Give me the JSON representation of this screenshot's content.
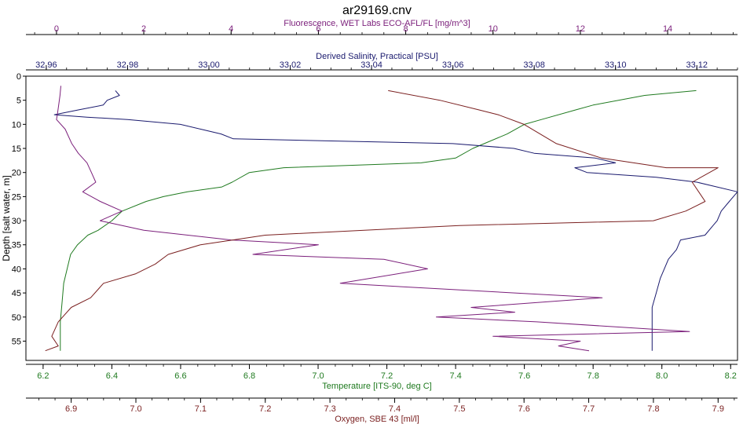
{
  "chart_data": {
    "type": "line",
    "title": "ar29169.cnv",
    "y_axis": {
      "label": "Depth [salt water, m]",
      "range": [
        0,
        59
      ],
      "ticks": [
        0,
        5,
        10,
        15,
        20,
        25,
        30,
        35,
        40,
        45,
        50,
        55
      ],
      "inverted": true
    },
    "x_axes": [
      {
        "id": "fluorescence",
        "label": "Fluorescence, WET Labs ECO-AFL/FL [mg/m^3]",
        "position": "top-1",
        "range": [
          -0.7,
          15.6
        ],
        "ticks": [
          0,
          2,
          4,
          6,
          8,
          10,
          12,
          14
        ],
        "tick_labels": [
          "0",
          "2",
          "4",
          "6",
          "8",
          "10",
          "12",
          "14"
        ],
        "color": "#7b1f7b"
      },
      {
        "id": "salinity",
        "label": "Derived Salinity, Practical [PSU]",
        "position": "top-2",
        "range": [
          32.955,
          33.13
        ],
        "ticks": [
          32.96,
          32.98,
          33.0,
          33.02,
          33.04,
          33.06,
          33.08,
          33.1,
          33.12
        ],
        "tick_labels": [
          "32,96",
          "32,98",
          "33,00",
          "33,02",
          "33,04",
          "33,06",
          "33,08",
          "33,10",
          "33,12"
        ],
        "color": "#1a1a6e"
      },
      {
        "id": "temperature",
        "label": "Temperature [ITS-90, deg C]",
        "position": "bottom-1",
        "range": [
          6.15,
          8.22
        ],
        "ticks": [
          6.2,
          6.4,
          6.6,
          6.8,
          7.0,
          7.2,
          7.4,
          7.6,
          7.8,
          8.0,
          8.2
        ],
        "tick_labels": [
          "6.2",
          "6.4",
          "6.6",
          "6.8",
          "7.0",
          "7.2",
          "7.4",
          "7.6",
          "7.8",
          "8.0",
          "8.2"
        ],
        "color": "#1f7a1f"
      },
      {
        "id": "oxygen",
        "label": "Oxygen, SBE 43 [ml/l]",
        "position": "bottom-2",
        "range": [
          6.83,
          7.93
        ],
        "ticks": [
          6.9,
          7.0,
          7.1,
          7.2,
          7.3,
          7.4,
          7.5,
          7.6,
          7.7,
          7.8,
          7.9
        ],
        "tick_labels": [
          "6.9",
          "7.0",
          "7.1",
          "7.2",
          "7.3",
          "7.4",
          "7.5",
          "7.6",
          "7.7",
          "7.8",
          "7.9"
        ],
        "color": "#7a1f1f"
      }
    ],
    "series": [
      {
        "axis": "temperature",
        "color": "#1f7a1f",
        "points": [
          [
            8.1,
            3
          ],
          [
            7.95,
            4
          ],
          [
            7.8,
            6
          ],
          [
            7.75,
            7
          ],
          [
            7.65,
            9
          ],
          [
            7.6,
            10
          ],
          [
            7.55,
            12
          ],
          [
            7.45,
            15
          ],
          [
            7.4,
            17
          ],
          [
            7.3,
            18
          ],
          [
            7.1,
            18.5
          ],
          [
            6.9,
            19
          ],
          [
            6.8,
            20
          ],
          [
            6.75,
            22
          ],
          [
            6.72,
            23
          ],
          [
            6.62,
            24
          ],
          [
            6.55,
            25
          ],
          [
            6.5,
            26
          ],
          [
            6.43,
            28
          ],
          [
            6.4,
            30
          ],
          [
            6.36,
            32
          ],
          [
            6.33,
            33
          ],
          [
            6.3,
            35
          ],
          [
            6.28,
            37
          ],
          [
            6.27,
            40
          ],
          [
            6.26,
            43
          ],
          [
            6.255,
            47
          ],
          [
            6.25,
            51
          ],
          [
            6.25,
            57
          ]
        ]
      },
      {
        "axis": "salinity",
        "color": "#1a1a6e",
        "points": [
          [
            32.977,
            3
          ],
          [
            32.978,
            4
          ],
          [
            32.975,
            5
          ],
          [
            32.974,
            6
          ],
          [
            32.968,
            7
          ],
          [
            32.962,
            8
          ],
          [
            32.97,
            8.5
          ],
          [
            32.98,
            9
          ],
          [
            32.993,
            10
          ],
          [
            32.998,
            11
          ],
          [
            33.003,
            12
          ],
          [
            33.006,
            13
          ],
          [
            33.06,
            14
          ],
          [
            33.075,
            15
          ],
          [
            33.08,
            16
          ],
          [
            33.095,
            17
          ],
          [
            33.1,
            18
          ],
          [
            33.09,
            19
          ],
          [
            33.093,
            20
          ],
          [
            33.11,
            21
          ],
          [
            33.12,
            22
          ],
          [
            33.13,
            24
          ],
          [
            33.128,
            26
          ],
          [
            33.126,
            28
          ],
          [
            33.125,
            30
          ],
          [
            33.124,
            31
          ],
          [
            33.122,
            33
          ],
          [
            33.116,
            34
          ],
          [
            33.115,
            36
          ],
          [
            33.113,
            38
          ],
          [
            33.112,
            40
          ],
          [
            33.111,
            42
          ],
          [
            33.11,
            45
          ],
          [
            33.109,
            48
          ],
          [
            33.109,
            52
          ],
          [
            33.109,
            57
          ]
        ]
      },
      {
        "axis": "fluorescence",
        "color": "#7b1f7b",
        "points": [
          [
            0.1,
            2
          ],
          [
            0.08,
            4
          ],
          [
            0.05,
            6
          ],
          [
            0.02,
            8
          ],
          [
            0.0,
            9
          ],
          [
            0.2,
            11
          ],
          [
            0.35,
            14
          ],
          [
            0.5,
            16
          ],
          [
            0.7,
            18
          ],
          [
            0.8,
            20
          ],
          [
            0.9,
            22
          ],
          [
            0.6,
            24
          ],
          [
            1.0,
            26
          ],
          [
            1.5,
            28
          ],
          [
            1.0,
            30
          ],
          [
            2.0,
            32
          ],
          [
            4.0,
            34
          ],
          [
            6.0,
            35
          ],
          [
            4.5,
            37
          ],
          [
            7.5,
            38
          ],
          [
            8.5,
            40
          ],
          [
            6.5,
            43
          ],
          [
            10.5,
            45
          ],
          [
            12.5,
            46
          ],
          [
            9.5,
            48
          ],
          [
            10.5,
            49
          ],
          [
            8.7,
            50
          ],
          [
            11.0,
            51
          ],
          [
            14.5,
            53
          ],
          [
            10.0,
            54
          ],
          [
            12.0,
            55
          ],
          [
            11.5,
            56
          ],
          [
            12.2,
            57
          ]
        ]
      },
      {
        "axis": "oxygen",
        "color": "#7a1f1f",
        "points": [
          [
            7.39,
            3
          ],
          [
            7.47,
            5
          ],
          [
            7.53,
            7
          ],
          [
            7.56,
            8
          ],
          [
            7.6,
            10
          ],
          [
            7.65,
            14
          ],
          [
            7.72,
            17
          ],
          [
            7.82,
            19
          ],
          [
            7.9,
            19
          ],
          [
            7.86,
            22
          ],
          [
            7.87,
            24
          ],
          [
            7.88,
            26
          ],
          [
            7.85,
            28
          ],
          [
            7.8,
            30
          ],
          [
            7.5,
            31
          ],
          [
            7.2,
            33
          ],
          [
            7.1,
            35
          ],
          [
            7.05,
            37
          ],
          [
            7.03,
            39
          ],
          [
            7.0,
            41
          ],
          [
            6.95,
            43
          ],
          [
            6.93,
            46
          ],
          [
            6.9,
            48
          ],
          [
            6.88,
            51
          ],
          [
            6.87,
            54
          ],
          [
            6.88,
            56
          ],
          [
            6.86,
            57
          ]
        ]
      }
    ]
  }
}
